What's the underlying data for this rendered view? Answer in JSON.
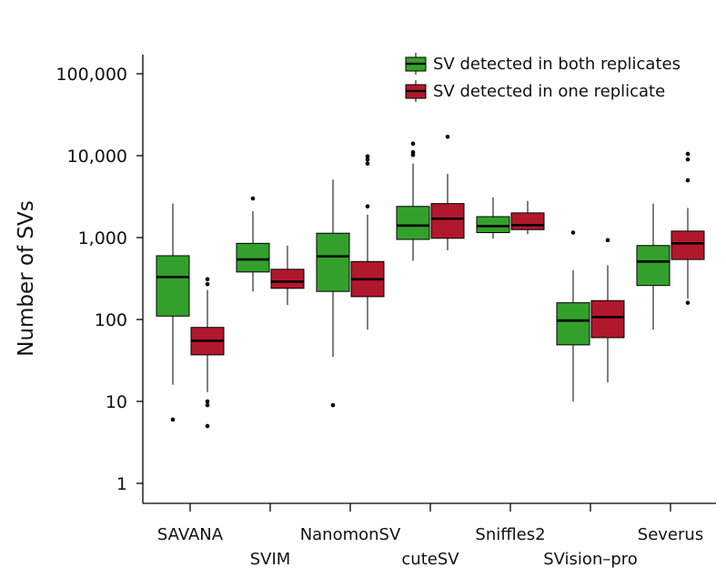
{
  "chart_data": {
    "type": "box",
    "ylabel": "Number of SVs",
    "xlabel": "",
    "yscale": "log10",
    "ylim": [
      1,
      150000
    ],
    "yticks": [
      1,
      10,
      100,
      1000,
      10000,
      100000
    ],
    "ytick_labels": [
      "1",
      "10",
      "100",
      "1,000",
      "10,000",
      "100,000"
    ],
    "categories": [
      "SAVANA",
      "SVIM",
      "NanomonSV",
      "cuteSV",
      "Sniffles2",
      "SVision-pro",
      "Severus"
    ],
    "category_labels": [
      "SAVANA",
      "SVIM",
      "NanomonSV",
      "cuteSV",
      "Sniffles2",
      "SVision–pro",
      "Severus"
    ],
    "legend_position": "top-right",
    "series": [
      {
        "name": "SV detected in both replicates",
        "color": "#33a02c",
        "boxes": [
          {
            "whisker_low": 16,
            "q1": 110,
            "median": 330,
            "q3": 600,
            "whisker_high": 2600,
            "outliers": [
              6
            ]
          },
          {
            "whisker_low": 220,
            "q1": 380,
            "median": 540,
            "q3": 850,
            "whisker_high": 2100,
            "outliers": [
              3000
            ]
          },
          {
            "whisker_low": 35,
            "q1": 220,
            "median": 590,
            "q3": 1130,
            "whisker_high": 5100,
            "outliers": [
              9
            ]
          },
          {
            "whisker_low": 520,
            "q1": 950,
            "median": 1400,
            "q3": 2400,
            "whisker_high": 8000,
            "outliers": [
              10200,
              11000,
              14000
            ]
          },
          {
            "whisker_low": 970,
            "q1": 1150,
            "median": 1380,
            "q3": 1800,
            "whisker_high": 3100,
            "outliers": []
          },
          {
            "whisker_low": 10,
            "q1": 49,
            "median": 97,
            "q3": 160,
            "whisker_high": 400,
            "outliers": [
              1150
            ]
          },
          {
            "whisker_low": 75,
            "q1": 260,
            "median": 510,
            "q3": 800,
            "whisker_high": 2600,
            "outliers": []
          }
        ]
      },
      {
        "name": "SV detected in one replicate",
        "color": "#b2182b",
        "boxes": [
          {
            "whisker_low": 13,
            "q1": 37,
            "median": 55,
            "q3": 80,
            "whisker_high": 230,
            "outliers": [
              5,
              9,
              10,
              270,
              310
            ]
          },
          {
            "whisker_low": 150,
            "q1": 240,
            "median": 290,
            "q3": 410,
            "whisker_high": 800,
            "outliers": []
          },
          {
            "whisker_low": 75,
            "q1": 190,
            "median": 310,
            "q3": 510,
            "whisker_high": 1900,
            "outliers": [
              2400,
              8000,
              9000,
              9800
            ]
          },
          {
            "whisker_low": 700,
            "q1": 980,
            "median": 1700,
            "q3": 2600,
            "whisker_high": 6000,
            "outliers": [
              17000
            ]
          },
          {
            "whisker_low": 1100,
            "q1": 1250,
            "median": 1420,
            "q3": 2000,
            "whisker_high": 2800,
            "outliers": []
          },
          {
            "whisker_low": 17,
            "q1": 60,
            "median": 107,
            "q3": 170,
            "whisker_high": 460,
            "outliers": [
              930
            ]
          },
          {
            "whisker_low": 180,
            "q1": 540,
            "median": 850,
            "q3": 1200,
            "whisker_high": 2300,
            "outliers": [
              160,
              5000,
              9000,
              10500
            ]
          }
        ]
      }
    ]
  }
}
